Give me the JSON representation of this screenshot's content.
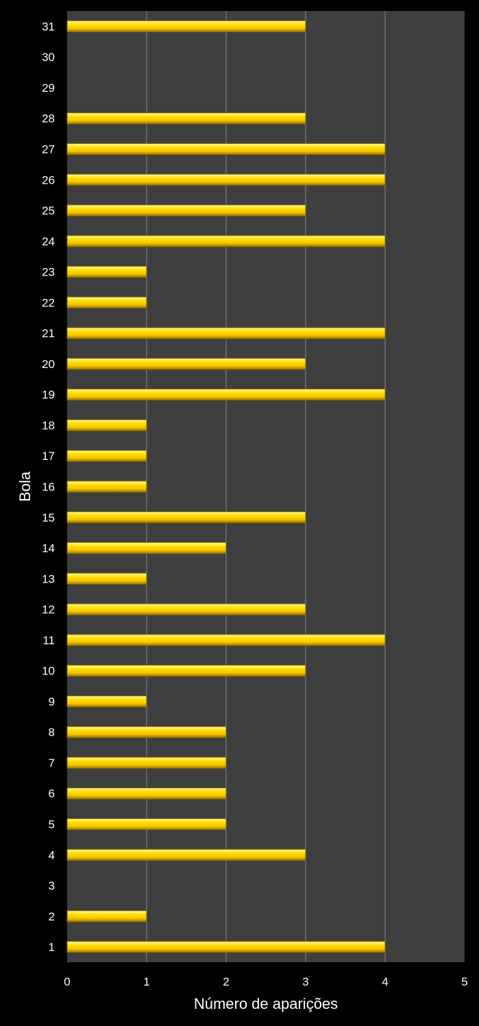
{
  "chart_data": {
    "type": "bar",
    "orientation": "horizontal",
    "title": "",
    "xlabel": "Número de aparições",
    "ylabel": "Bola",
    "xlim": [
      0,
      5
    ],
    "x_ticks": [
      "0",
      "1",
      "2",
      "3",
      "4",
      "5"
    ],
    "grid": "vertical",
    "categories": [
      "1",
      "2",
      "3",
      "4",
      "5",
      "6",
      "7",
      "8",
      "9",
      "10",
      "11",
      "12",
      "13",
      "14",
      "15",
      "16",
      "17",
      "18",
      "19",
      "20",
      "21",
      "22",
      "23",
      "24",
      "25",
      "26",
      "27",
      "28",
      "29",
      "30",
      "31"
    ],
    "values": [
      4,
      1,
      0,
      3,
      2,
      2,
      2,
      2,
      1,
      3,
      4,
      3,
      1,
      2,
      3,
      1,
      1,
      1,
      4,
      3,
      4,
      1,
      1,
      4,
      3,
      4,
      4,
      3,
      0,
      0,
      3
    ],
    "colors": {
      "background": "#000000",
      "plot_area": "#3f3f3f",
      "grid": "#8a8a8a",
      "bar_top": "#fff27a",
      "bar_mid": "#ffd600",
      "bar_bottom": "#b58f00",
      "text": "#ffffff"
    }
  }
}
